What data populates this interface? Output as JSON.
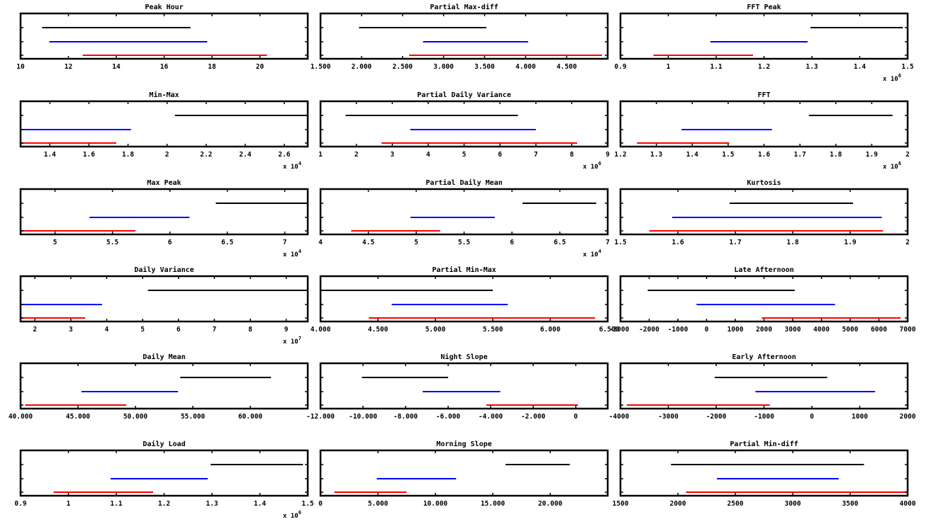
{
  "chart_data": [
    {
      "type": "interval",
      "title": "Peak Hour",
      "xlim": [
        10,
        22
      ],
      "ticks": [
        10,
        12,
        14,
        16,
        18,
        20
      ],
      "tick_labels": [
        "10",
        "12",
        "14",
        "16",
        "18",
        "20"
      ],
      "end_label": "",
      "multiplier_label": "",
      "intervals": [
        {
          "color": "#000000",
          "lo": 10.9,
          "hi": 17.1
        },
        {
          "color": "#0000ff",
          "lo": 11.2,
          "hi": 17.8
        },
        {
          "color": "#ff0000",
          "lo": 12.6,
          "hi": 20.3
        }
      ]
    },
    {
      "type": "interval",
      "title": "Partial Max-diff",
      "xlim": [
        1500,
        5000
      ],
      "ticks": [
        1500,
        2000,
        2500,
        3000,
        3500,
        4000,
        4500
      ],
      "tick_labels": [
        "1.500",
        "2.000",
        "2.500",
        "3.000",
        "3.500",
        "4.000",
        "4.500"
      ],
      "end_label": "",
      "multiplier_label": "",
      "intervals": [
        {
          "color": "#000000",
          "lo": 1970,
          "hi": 3520
        },
        {
          "color": "#0000ff",
          "lo": 2750,
          "hi": 4030
        },
        {
          "color": "#ff0000",
          "lo": 2580,
          "hi": 4930
        }
      ]
    },
    {
      "type": "interval",
      "title": "FFT Peak",
      "xlim": [
        0.9,
        1.5
      ],
      "ticks": [
        0.9,
        1,
        1.1,
        1.2,
        1.3,
        1.4,
        1.5
      ],
      "tick_labels": [
        "0.9",
        "1",
        "1.1",
        "1.2",
        "1.3",
        "1.4",
        "1.5"
      ],
      "end_label": "",
      "multiplier_label": "x 10^6",
      "intervals": [
        {
          "color": "#000000",
          "lo": 1.297,
          "hi": 1.49
        },
        {
          "color": "#0000ff",
          "lo": 1.088,
          "hi": 1.291
        },
        {
          "color": "#ff0000",
          "lo": 0.969,
          "hi": 1.177
        }
      ]
    },
    {
      "type": "interval",
      "title": "Min-Max",
      "xlim": [
        1.25,
        2.72
      ],
      "ticks": [
        1.4,
        1.6,
        1.8,
        2,
        2.2,
        2.4,
        2.6
      ],
      "tick_labels": [
        "1.4",
        "1.6",
        "1.8",
        "2",
        "2.2",
        "2.4",
        "2.6"
      ],
      "end_label": "",
      "multiplier_label": "x 10^4",
      "intervals": [
        {
          "color": "#000000",
          "lo": 2.04,
          "hi": 2.72
        },
        {
          "color": "#0000ff",
          "lo": 1.25,
          "hi": 1.815
        },
        {
          "color": "#ff0000",
          "lo": 1.25,
          "hi": 1.74
        }
      ]
    },
    {
      "type": "interval",
      "title": "Partial Daily Variance",
      "xlim": [
        1,
        9
      ],
      "ticks": [
        1,
        2,
        3,
        4,
        5,
        6,
        7,
        8,
        9
      ],
      "tick_labels": [
        "1",
        "2",
        "3",
        "4",
        "5",
        "6",
        "7",
        "8",
        "9"
      ],
      "end_label": "",
      "multiplier_label": "x 10^6",
      "intervals": [
        {
          "color": "#000000",
          "lo": 1.7,
          "hi": 6.5
        },
        {
          "color": "#0000ff",
          "lo": 3.5,
          "hi": 7.0
        },
        {
          "color": "#ff0000",
          "lo": 2.7,
          "hi": 8.15
        }
      ]
    },
    {
      "type": "interval",
      "title": "FFT",
      "xlim": [
        1.2,
        2
      ],
      "ticks": [
        1.2,
        1.3,
        1.4,
        1.5,
        1.6,
        1.7,
        1.8,
        1.9,
        2
      ],
      "tick_labels": [
        "1.2",
        "1.3",
        "1.4",
        "1.5",
        "1.6",
        "1.7",
        "1.8",
        "1.9",
        "2"
      ],
      "end_label": "",
      "multiplier_label": "x 10^6",
      "intervals": [
        {
          "color": "#000000",
          "lo": 1.725,
          "hi": 1.958
        },
        {
          "color": "#0000ff",
          "lo": 1.37,
          "hi": 1.622
        },
        {
          "color": "#ff0000",
          "lo": 1.246,
          "hi": 1.503
        }
      ]
    },
    {
      "type": "interval",
      "title": "Max Peak",
      "xlim": [
        4.7,
        7.2
      ],
      "ticks": [
        5,
        5.5,
        6,
        6.5,
        7
      ],
      "tick_labels": [
        "5",
        "5.5",
        "6",
        "6.5",
        "7"
      ],
      "end_label": "",
      "multiplier_label": "x 10^4",
      "intervals": [
        {
          "color": "#000000",
          "lo": 6.4,
          "hi": 7.2
        },
        {
          "color": "#0000ff",
          "lo": 5.3,
          "hi": 6.17
        },
        {
          "color": "#ff0000",
          "lo": 4.7,
          "hi": 5.7
        }
      ]
    },
    {
      "type": "interval",
      "title": "Partial Daily Mean",
      "xlim": [
        4,
        7
      ],
      "ticks": [
        4,
        4.5,
        5,
        5.5,
        6,
        6.5,
        7
      ],
      "tick_labels": [
        "4",
        "4.5",
        "5",
        "5.5",
        "6",
        "6.5",
        "7"
      ],
      "end_label": "",
      "multiplier_label": "x 10^4",
      "intervals": [
        {
          "color": "#000000",
          "lo": 6.11,
          "hi": 6.88
        },
        {
          "color": "#0000ff",
          "lo": 4.94,
          "hi": 5.82
        },
        {
          "color": "#ff0000",
          "lo": 4.32,
          "hi": 5.25
        }
      ]
    },
    {
      "type": "interval",
      "title": "Kurtosis",
      "xlim": [
        1.5,
        2
      ],
      "ticks": [
        1.5,
        1.6,
        1.7,
        1.8,
        1.9,
        2
      ],
      "tick_labels": [
        "1.5",
        "1.6",
        "1.7",
        "1.8",
        "1.9",
        "2"
      ],
      "end_label": "",
      "multiplier_label": "",
      "intervals": [
        {
          "color": "#000000",
          "lo": 1.69,
          "hi": 1.905
        },
        {
          "color": "#0000ff",
          "lo": 1.59,
          "hi": 1.955
        },
        {
          "color": "#ff0000",
          "lo": 1.55,
          "hi": 1.957
        }
      ]
    },
    {
      "type": "interval",
      "title": "Daily Variance",
      "xlim": [
        1.6,
        9.6
      ],
      "ticks": [
        2,
        3,
        4,
        5,
        6,
        7,
        8,
        9
      ],
      "tick_labels": [
        "2",
        "3",
        "4",
        "5",
        "6",
        "7",
        "8",
        "9"
      ],
      "end_label": "",
      "multiplier_label": "x 10^7",
      "intervals": [
        {
          "color": "#000000",
          "lo": 5.15,
          "hi": 9.6
        },
        {
          "color": "#0000ff",
          "lo": 1.6,
          "hi": 3.87
        },
        {
          "color": "#ff0000",
          "lo": 1.6,
          "hi": 3.4
        }
      ]
    },
    {
      "type": "interval",
      "title": "Partial Min-Max",
      "xlim": [
        4000,
        6500
      ],
      "ticks": [
        4000,
        4500,
        5000,
        5500,
        6000
      ],
      "tick_labels": [
        "4.000",
        "4.500",
        "5.000",
        "5.500",
        "6.000"
      ],
      "end_label": "6.500",
      "multiplier_label": "",
      "intervals": [
        {
          "color": "#000000",
          "lo": 4010,
          "hi": 5500
        },
        {
          "color": "#0000ff",
          "lo": 4620,
          "hi": 5630
        },
        {
          "color": "#ff0000",
          "lo": 4420,
          "hi": 6390
        }
      ]
    },
    {
      "type": "interval",
      "title": "Late Afternoon",
      "xlim": [
        -3000,
        7000
      ],
      "ticks": [
        -2000,
        -1000,
        0,
        1000,
        2000,
        3000,
        4000,
        5000,
        6000,
        7000
      ],
      "tick_labels": [
        "-2000",
        "-1000",
        "0",
        "1000",
        "2000",
        "3000",
        "4000",
        "5000",
        "6000",
        "7000"
      ],
      "end_label": "",
      "start_label": "-3000",
      "multiplier_label": "",
      "intervals": [
        {
          "color": "#000000",
          "lo": -2050,
          "hi": 3070
        },
        {
          "color": "#0000ff",
          "lo": -350,
          "hi": 4470
        },
        {
          "color": "#ff0000",
          "lo": 1920,
          "hi": 6760
        }
      ]
    },
    {
      "type": "interval",
      "title": "Daily Mean",
      "xlim": [
        40000,
        65000
      ],
      "ticks": [
        40000,
        45000,
        50000,
        55000,
        60000
      ],
      "tick_labels": [
        "40.000",
        "45.000",
        "50.000",
        "55.000",
        "60.000"
      ],
      "end_label": "",
      "multiplier_label": "",
      "intervals": [
        {
          "color": "#000000",
          "lo": 53900,
          "hi": 61800
        },
        {
          "color": "#0000ff",
          "lo": 45300,
          "hi": 53700
        },
        {
          "color": "#ff0000",
          "lo": 40400,
          "hi": 49200
        }
      ]
    },
    {
      "type": "interval",
      "title": "Night Slope",
      "xlim": [
        -12000,
        1500
      ],
      "ticks": [
        -12000,
        -10000,
        -8000,
        -6000,
        -4000,
        -2000,
        0
      ],
      "tick_labels": [
        "-12.000",
        "-10.000",
        "-8.000",
        "-6.000",
        "-4.000",
        "-2.000",
        "0"
      ],
      "end_label": "",
      "multiplier_label": "",
      "intervals": [
        {
          "color": "#000000",
          "lo": -10050,
          "hi": -6000
        },
        {
          "color": "#0000ff",
          "lo": -7200,
          "hi": -3550
        },
        {
          "color": "#ff0000",
          "lo": -4200,
          "hi": 100
        }
      ]
    },
    {
      "type": "interval",
      "title": "Early Afternoon",
      "xlim": [
        -4000,
        2000
      ],
      "ticks": [
        -3000,
        -2000,
        -1000,
        0,
        1000,
        2000
      ],
      "tick_labels": [
        "-3000",
        "-2000",
        "-1000",
        "0",
        "1000",
        "2000"
      ],
      "end_label": "",
      "start_label": "-4000",
      "multiplier_label": "",
      "intervals": [
        {
          "color": "#000000",
          "lo": -2030,
          "hi": 320
        },
        {
          "color": "#0000ff",
          "lo": -1180,
          "hi": 1320
        },
        {
          "color": "#ff0000",
          "lo": -3870,
          "hi": -880
        }
      ]
    },
    {
      "type": "interval",
      "title": "Daily Load",
      "xlim": [
        0.9,
        1.5
      ],
      "ticks": [
        0.9,
        1,
        1.1,
        1.2,
        1.3,
        1.4,
        1.5
      ],
      "tick_labels": [
        "0.9",
        "1",
        "1.1",
        "1.2",
        "1.3",
        "1.4",
        "1.5"
      ],
      "end_label": "",
      "multiplier_label": "x 10^6",
      "intervals": [
        {
          "color": "#000000",
          "lo": 1.297,
          "hi": 1.49
        },
        {
          "color": "#0000ff",
          "lo": 1.088,
          "hi": 1.291
        },
        {
          "color": "#ff0000",
          "lo": 0.969,
          "hi": 1.177
        }
      ]
    },
    {
      "type": "interval",
      "title": "Morning Slope",
      "xlim": [
        0,
        25000
      ],
      "ticks": [
        0,
        5000,
        10000,
        15000,
        20000
      ],
      "tick_labels": [
        "0",
        "5.000",
        "10.000",
        "15.000",
        "20.000"
      ],
      "end_label": "",
      "multiplier_label": "",
      "intervals": [
        {
          "color": "#000000",
          "lo": 16100,
          "hi": 21700
        },
        {
          "color": "#0000ff",
          "lo": 4900,
          "hi": 11800
        },
        {
          "color": "#ff0000",
          "lo": 1200,
          "hi": 7500
        }
      ]
    },
    {
      "type": "interval",
      "title": "Partial Min-diff",
      "xlim": [
        1500,
        4000
      ],
      "ticks": [
        1500,
        2000,
        2500,
        3000,
        3500,
        4000
      ],
      "tick_labels": [
        "1500",
        "2000",
        "2500",
        "3000",
        "3500",
        "4000"
      ],
      "end_label": "",
      "multiplier_label": "",
      "intervals": [
        {
          "color": "#000000",
          "lo": 1940,
          "hi": 3620
        },
        {
          "color": "#0000ff",
          "lo": 2340,
          "hi": 3400
        },
        {
          "color": "#ff0000",
          "lo": 2070,
          "hi": 4000
        }
      ]
    }
  ]
}
